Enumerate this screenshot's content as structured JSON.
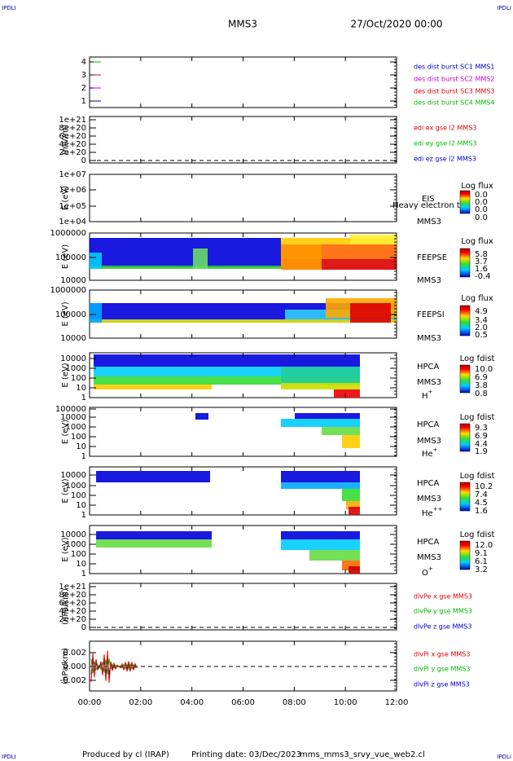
{
  "header": {
    "corner_left": "IPDLI",
    "corner_right": "IPDLI",
    "title": "MMS3",
    "date": "27/Oct/2020 00:00"
  },
  "panels": [
    {
      "ylabel": null,
      "yticks": [
        "4",
        "3",
        "2",
        "1"
      ],
      "legend": [
        {
          "text": "des dist burst SC1 MMS1",
          "color": "#0000cc"
        },
        {
          "text": "des dist burst SC2 MMS2",
          "color": "#cc00cc"
        },
        {
          "text": "des dist burst SC3 MMS3",
          "color": "#dd0000"
        },
        {
          "text": "des dist burst SC4 MMS4",
          "color": "#00bb00"
        }
      ]
    },
    {
      "ylabel": "(mV/m)",
      "yticks": [
        "1e+21",
        "8e+20",
        "6e+20",
        "4e+20",
        "2e+20",
        "0"
      ],
      "legend": [
        {
          "text": "edi ex gse l2 MMS3",
          "color": "#dd0000"
        },
        {
          "text": "edi ey gse l2 MMS3",
          "color": "#00bb00"
        },
        {
          "text": "edi ez gse l2 MMS3",
          "color": "#0000cc"
        }
      ]
    },
    {
      "ylabel": "E (eV)",
      "yticks": [
        "1e+07",
        "1e+06",
        "1e+05",
        "1e+04"
      ],
      "side": [
        "EIS",
        "Heavy electron to",
        "MMS3"
      ],
      "colorbar": {
        "title": "Log flux",
        "labels": [
          "0.0",
          "0.0",
          "0.0",
          "0.0"
        ]
      }
    },
    {
      "ylabel": "E (eV)",
      "yticks": [
        "1000000",
        "100000",
        "10000"
      ],
      "side": [
        "FEEPSE",
        "MMS3"
      ],
      "colorbar": {
        "title": "Log flux",
        "labels": [
          "5.8",
          "3.7",
          "1.6",
          "-0.4"
        ]
      }
    },
    {
      "ylabel": "E (eV)",
      "yticks": [
        "1000000",
        "100000",
        "10000"
      ],
      "side": [
        "FEEPSI",
        "MMS3"
      ],
      "colorbar": {
        "title": "Log flux",
        "labels": [
          "4.9",
          "3.4",
          "2.0",
          "0.5"
        ]
      }
    },
    {
      "ylabel": "E (eV)",
      "yticks": [
        "10000",
        "1000",
        "100",
        "10",
        "1"
      ],
      "side": [
        "HPCA",
        "MMS3"
      ],
      "species": {
        "base": "H",
        "sup": "+"
      },
      "colorbar": {
        "title": "Log fdist",
        "labels": [
          "10.0",
          "6.9",
          "3.8",
          "0.8"
        ]
      }
    },
    {
      "ylabel": "E (eV)",
      "yticks": [
        "100000",
        "10000",
        "1000",
        "100",
        "10",
        "1"
      ],
      "side": [
        "HPCA",
        "MMS3"
      ],
      "species": {
        "base": "He",
        "sup": "+"
      },
      "colorbar": {
        "title": "Log fdist",
        "labels": [
          "9.3",
          "6.9",
          "4.4",
          "1.9"
        ]
      }
    },
    {
      "ylabel": "E (eV)",
      "yticks": [
        "10000",
        "1000",
        "100",
        "10",
        "1"
      ],
      "side": [
        "HPCA",
        "MMS3"
      ],
      "species": {
        "base": "He",
        "sup": "++"
      },
      "colorbar": {
        "title": "Log fdist",
        "labels": [
          "10.2",
          "7.4",
          "4.5",
          "1.6"
        ]
      }
    },
    {
      "ylabel": "E (eV)",
      "yticks": [
        "10000",
        "1000",
        "100",
        "10",
        "1"
      ],
      "side": [
        "HPCA",
        "MMS3"
      ],
      "species": {
        "base": "O",
        "sup": "+"
      },
      "colorbar": {
        "title": "Log fdist",
        "labels": [
          "12.0",
          "9.1",
          "6.1",
          "3.2"
        ]
      }
    },
    {
      "ylabel": "(nPa/km)",
      "yticks": [
        "1e+21",
        "8e+20",
        "6e+20",
        "4e+20",
        "2e+20",
        "0"
      ],
      "legend": [
        {
          "text": "dlvPe x gse MMS3",
          "color": "#dd0000"
        },
        {
          "text": "dlvPe y gse MMS3",
          "color": "#00bb00"
        },
        {
          "text": "dlvPe z gse MMS3",
          "color": "#0000cc"
        }
      ]
    },
    {
      "ylabel": "(nPa/km)",
      "yticks": [
        "0.002",
        "0.000",
        "-0.002"
      ],
      "legend": [
        {
          "text": "dlvPi x gse MMS3",
          "color": "#dd0000"
        },
        {
          "text": "dlvPi y gse MMS3",
          "color": "#00bb00"
        },
        {
          "text": "dlvPi z gse MMS3",
          "color": "#0000cc"
        }
      ]
    }
  ],
  "xticks": [
    "00:00",
    "02:00",
    "04:00",
    "06:00",
    "08:00",
    "10:00",
    "12:00"
  ],
  "footer": {
    "corner_left": "IPDLI",
    "corner_right": "IPDLI",
    "credit": "Produced by cl (IRAP)",
    "printed": "Printing date: 03/Dec/2023",
    "file": "mms_mms3_srvy_vue_web2.cl"
  }
}
